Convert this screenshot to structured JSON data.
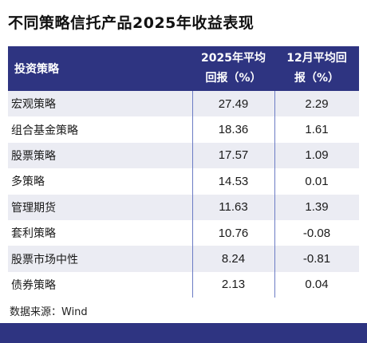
{
  "title": "不同策略信托产品2025年收益表现",
  "table": {
    "headers": {
      "name": "投资策略",
      "year_line1": "2025年平均",
      "year_line2": "回报（%）",
      "month_line1": "12月平均回",
      "month_line2": "报（%）"
    },
    "rows": [
      {
        "name": "宏观策略",
        "year": "27.49",
        "month": "2.29"
      },
      {
        "name": "组合基金策略",
        "year": "18.36",
        "month": "1.61"
      },
      {
        "name": "股票策略",
        "year": "17.57",
        "month": "1.09"
      },
      {
        "name": "多策略",
        "year": "14.53",
        "month": "0.01"
      },
      {
        "name": "管理期货",
        "year": "11.63",
        "month": "1.39"
      },
      {
        "name": "套利策略",
        "year": "10.76",
        "month": "-0.08"
      },
      {
        "name": "股票市场中性",
        "year": "8.24",
        "month": "-0.81"
      },
      {
        "name": "债券策略",
        "year": "2.13",
        "month": "0.04"
      }
    ]
  },
  "source": "数据来源：Wind",
  "colors": {
    "header_bg": "#2e3481",
    "alt_row_bg": "#ebecf3",
    "divider": "#6b7cc4"
  }
}
